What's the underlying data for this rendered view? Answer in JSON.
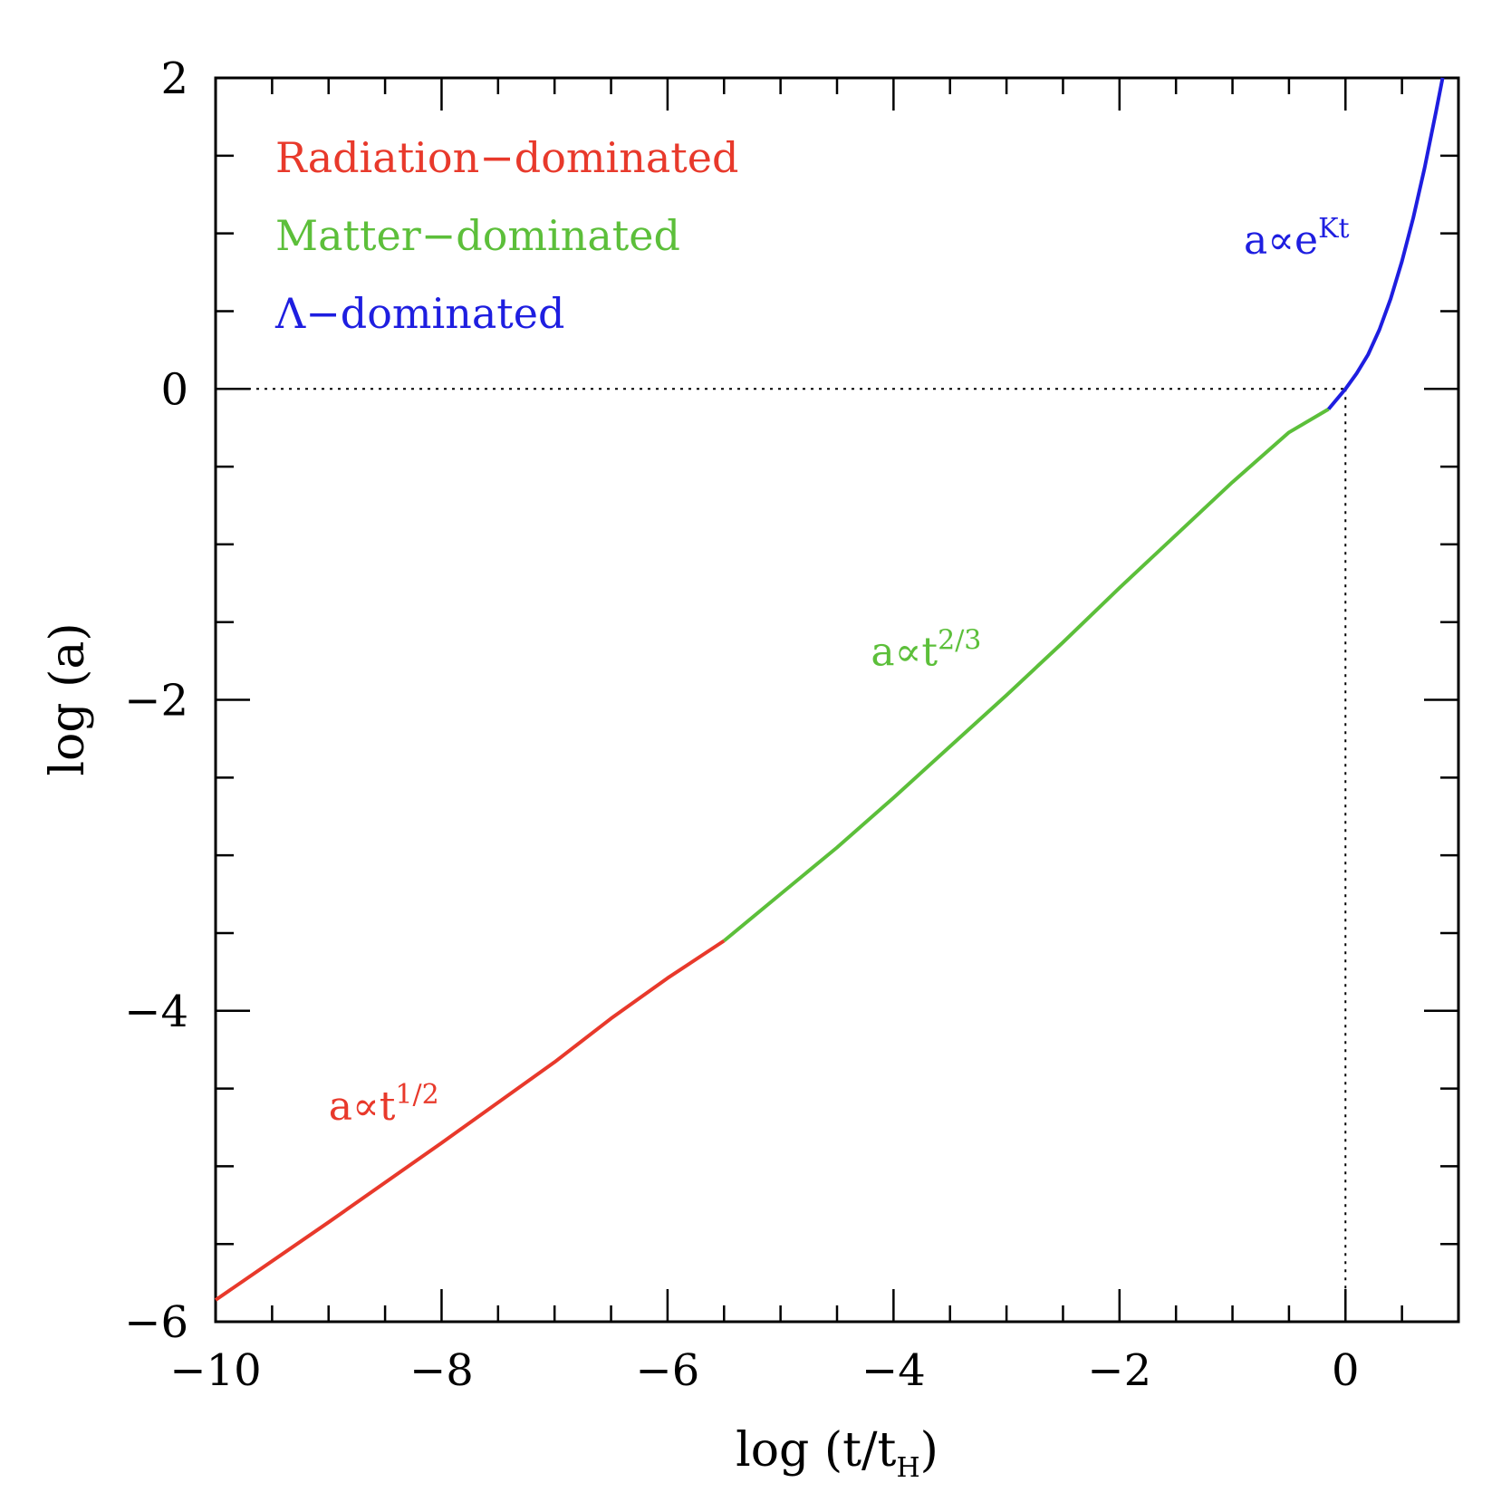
{
  "chart_data": {
    "type": "line",
    "xlabel": {
      "main": "log (t/t",
      "sub": "H",
      "tail": ")"
    },
    "ylabel": "log (a)",
    "xlim": [
      -10,
      1
    ],
    "ylim": [
      -6,
      2
    ],
    "x_ticks": [
      -10,
      -8,
      -6,
      -4,
      -2,
      0
    ],
    "x_tick_labels": [
      "−10",
      "−8",
      "−6",
      "−4",
      "−2",
      "0"
    ],
    "y_ticks": [
      -6,
      -4,
      -2,
      0,
      2
    ],
    "y_tick_labels": [
      "−6",
      "−4",
      "−2",
      "0",
      "2"
    ],
    "x_minor_step": 0.5,
    "y_minor_step": 0.5,
    "grid": false,
    "legend_position": "top-left",
    "reference_lines": {
      "x": 0,
      "y": 0,
      "style": "dotted"
    },
    "series": [
      {
        "name": "Radiation−dominated",
        "color": "#e8392b",
        "x": [
          -10,
          -9,
          -8,
          -7,
          -6.5,
          -6,
          -5.5
        ],
        "y": [
          -5.86,
          -5.36,
          -4.85,
          -4.33,
          -4.05,
          -3.79,
          -3.55
        ]
      },
      {
        "name": "Matter−dominated",
        "color": "#5cbf3a",
        "x": [
          -5.5,
          -5,
          -4.5,
          -4,
          -3.5,
          -3,
          -2.5,
          -2,
          -1.5,
          -1,
          -0.5,
          -0.15
        ],
        "y": [
          -3.55,
          -3.25,
          -2.95,
          -2.63,
          -2.3,
          -1.97,
          -1.63,
          -1.28,
          -0.94,
          -0.6,
          -0.28,
          -0.13
        ]
      },
      {
        "name": "Λ−dominated",
        "color": "#1e1ee0",
        "x": [
          -0.15,
          0,
          0.1,
          0.2,
          0.3,
          0.4,
          0.5,
          0.6,
          0.7,
          0.8,
          0.86
        ],
        "y": [
          -0.13,
          0,
          0.1,
          0.22,
          0.38,
          0.58,
          0.82,
          1.1,
          1.42,
          1.78,
          2.0
        ]
      }
    ],
    "annotations": [
      {
        "base": "a∝t",
        "sup": "1/2",
        "color": "#e8392b",
        "x": -9.0,
        "y": -4.7
      },
      {
        "base": "a∝t",
        "sup": "2/3",
        "color": "#5cbf3a",
        "x": -4.2,
        "y": -1.78
      },
      {
        "base": "a∝e",
        "sup": "Kt",
        "color": "#1e1ee0",
        "x": -0.9,
        "y": 0.87
      }
    ]
  }
}
